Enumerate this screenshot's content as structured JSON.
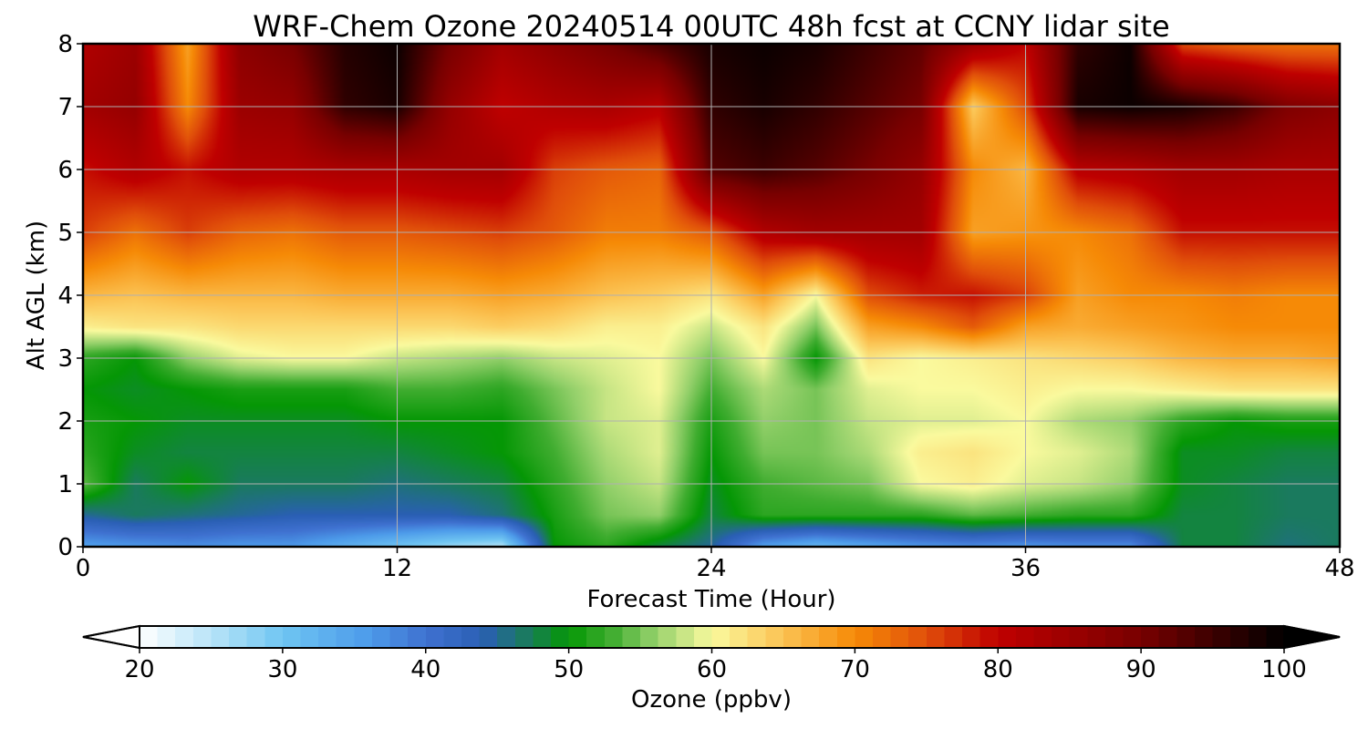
{
  "chart_data": {
    "type": "heatmap",
    "title": "WRF-Chem Ozone  20240514 00UTC 48h fcst at CCNY lidar site",
    "xlabel": "Forecast Time (Hour)",
    "ylabel": "Alt AGL (km)",
    "xlim": [
      0,
      48
    ],
    "ylim": [
      0,
      8
    ],
    "xticks": [
      0,
      12,
      24,
      36,
      48
    ],
    "yticks": [
      0,
      1,
      2,
      3,
      4,
      5,
      6,
      7,
      8
    ],
    "grid": true,
    "x_hours": [
      0,
      2,
      4,
      6,
      8,
      10,
      12,
      14,
      16,
      18,
      20,
      22,
      24,
      26,
      28,
      30,
      32,
      34,
      36,
      38,
      40,
      42,
      44,
      46,
      48
    ],
    "altitudes_km": [
      0,
      0.5,
      1,
      1.5,
      2,
      2.5,
      3,
      3.5,
      4,
      5,
      6,
      7,
      8
    ],
    "ozone_ppbv": [
      [
        35,
        36,
        37,
        36,
        36,
        33,
        30,
        27,
        25,
        50,
        52,
        48,
        45,
        35,
        32,
        34,
        36,
        37,
        36,
        37,
        37,
        48,
        48,
        46,
        47
      ],
      [
        45,
        47,
        46,
        45,
        44,
        44,
        44,
        44,
        46,
        51,
        55,
        56,
        48,
        52,
        52,
        52,
        52,
        54,
        53,
        52,
        52,
        48,
        48,
        47,
        47
      ],
      [
        54,
        47,
        50,
        47,
        47,
        47,
        46,
        47,
        48,
        52,
        56,
        58,
        49,
        53,
        54,
        55,
        60,
        61,
        59,
        58,
        56,
        49,
        48,
        47,
        47
      ],
      [
        52,
        49,
        48,
        48,
        48,
        48,
        48,
        49,
        50,
        53,
        57,
        59,
        50,
        55,
        55,
        57,
        61,
        62,
        60,
        59,
        57,
        49,
        49,
        48,
        48
      ],
      [
        51,
        50,
        49,
        49,
        49,
        49,
        50,
        50,
        50,
        54,
        58,
        59,
        51,
        56,
        55,
        58,
        59,
        59,
        60,
        57,
        56,
        52,
        50,
        51,
        51
      ],
      [
        50,
        49,
        50,
        51,
        51,
        51,
        53,
        53,
        52,
        55,
        58,
        60,
        53,
        57,
        55,
        59,
        60,
        60,
        61,
        60,
        60,
        61,
        62,
        62,
        62
      ],
      [
        52,
        50,
        56,
        59,
        60,
        60,
        58,
        57,
        56,
        58,
        59,
        60,
        55,
        60,
        50,
        62,
        60,
        61,
        62,
        63,
        64,
        66,
        67,
        67,
        68
      ],
      [
        61,
        62,
        62,
        63,
        63,
        63,
        63,
        63,
        64,
        63,
        61,
        61,
        58,
        62,
        55,
        68,
        70,
        74,
        68,
        67,
        68,
        69,
        70,
        70,
        70
      ],
      [
        66,
        65,
        66,
        66,
        66,
        67,
        67,
        67,
        68,
        67,
        65,
        64,
        62,
        68,
        60,
        75,
        78,
        79,
        76,
        68,
        70,
        70,
        71,
        70,
        70
      ],
      [
        76,
        72,
        76,
        73,
        72,
        74,
        74,
        75,
        76,
        74,
        71,
        71,
        74,
        82,
        84,
        84,
        84,
        68,
        69,
        70,
        72,
        79,
        79,
        79,
        79
      ],
      [
        79,
        82,
        79,
        82,
        82,
        83,
        83,
        84,
        84,
        76,
        74,
        73,
        93,
        95,
        93,
        90,
        86,
        70,
        66,
        81,
        82,
        84,
        84,
        83,
        83
      ],
      [
        84,
        86,
        70,
        85,
        86,
        96,
        98,
        86,
        80,
        82,
        83,
        81,
        96,
        98,
        96,
        93,
        90,
        64,
        75,
        98,
        99,
        98,
        95,
        89,
        87
      ],
      [
        82,
        85,
        68,
        87,
        90,
        97,
        99,
        90,
        84,
        87,
        90,
        94,
        98,
        99,
        98,
        95,
        92,
        85,
        80,
        96,
        99,
        75,
        73,
        72,
        72
      ]
    ],
    "colorbar": {
      "label": "Ozone  (ppbv)",
      "min": 20,
      "max": 100,
      "ticks": [
        20,
        30,
        40,
        50,
        60,
        70,
        80,
        90,
        100
      ],
      "extend": "both",
      "color_stops": [
        {
          "v": 20,
          "c": "#ffffff"
        },
        {
          "v": 27,
          "c": "#9bd8f5"
        },
        {
          "v": 30,
          "c": "#6fc5f2"
        },
        {
          "v": 36,
          "c": "#4d9bea"
        },
        {
          "v": 40,
          "c": "#3f71d0"
        },
        {
          "v": 44,
          "c": "#2a5fb4"
        },
        {
          "v": 47,
          "c": "#1a7a5e"
        },
        {
          "v": 50,
          "c": "#059705"
        },
        {
          "v": 53,
          "c": "#40ad30"
        },
        {
          "v": 56,
          "c": "#93d06a"
        },
        {
          "v": 60,
          "c": "#fafa9e"
        },
        {
          "v": 65,
          "c": "#fbc252"
        },
        {
          "v": 70,
          "c": "#f68a06"
        },
        {
          "v": 75,
          "c": "#e04e0a"
        },
        {
          "v": 80,
          "c": "#bf0000"
        },
        {
          "v": 90,
          "c": "#780000"
        },
        {
          "v": 100,
          "c": "#000000"
        }
      ]
    }
  }
}
